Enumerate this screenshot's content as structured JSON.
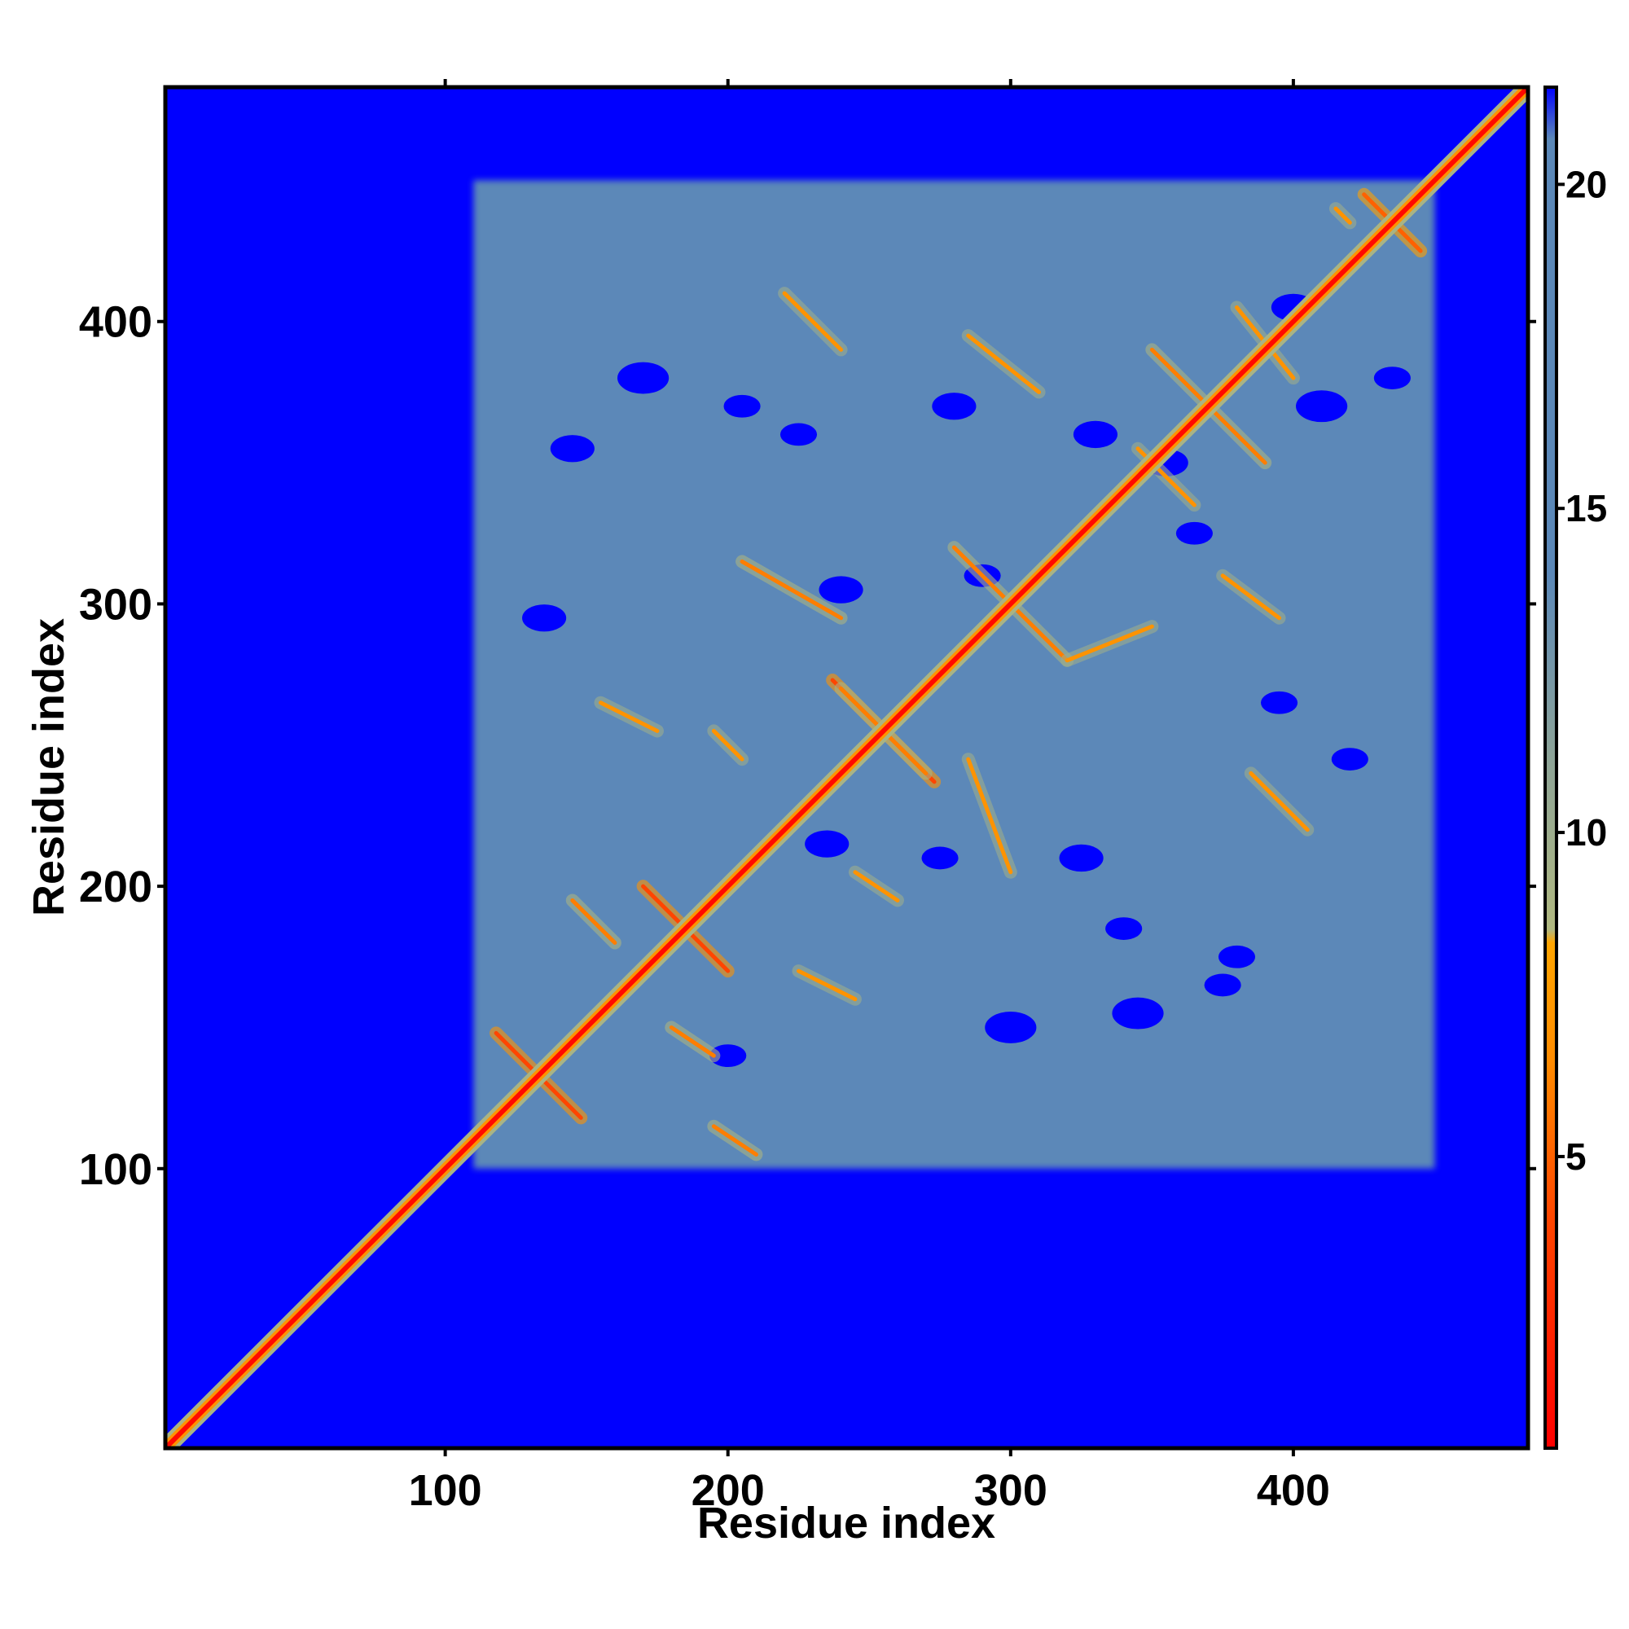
{
  "chart_data": {
    "type": "heatmap",
    "description_type": "contact / distance map",
    "title": "",
    "xlabel": "Residue index",
    "ylabel": "Residue index",
    "x_range": [
      1,
      483
    ],
    "y_range": [
      1,
      483
    ],
    "x_ticks": [
      100,
      200,
      300,
      400
    ],
    "y_ticks": [
      100,
      200,
      300,
      400
    ],
    "x_tick_labels": [
      "100",
      "200",
      "300",
      "400"
    ],
    "y_tick_labels": [
      "100",
      "200",
      "300",
      "400"
    ],
    "colorbar": {
      "range": [
        0.5,
        21.5
      ],
      "ticks": [
        5,
        10,
        15,
        20
      ],
      "tick_labels": [
        "5",
        "10",
        "15",
        "20"
      ],
      "stops": [
        {
          "value": 0.5,
          "color": "#ff0000"
        },
        {
          "value": 4,
          "color": "#ff4500"
        },
        {
          "value": 6.5,
          "color": "#ff8c00"
        },
        {
          "value": 8.3,
          "color": "#ffa500"
        },
        {
          "value": 8.5,
          "color": "#b0b880"
        },
        {
          "value": 11,
          "color": "#8fa596"
        },
        {
          "value": 14,
          "color": "#5b88b8"
        },
        {
          "value": 20.7,
          "color": "#5b88b8"
        },
        {
          "value": 21.5,
          "color": "#0000ff"
        }
      ]
    },
    "background_color": "#0000ff",
    "core_region": {
      "x": [
        110,
        450
      ],
      "y": [
        100,
        450
      ],
      "value": 15
    },
    "diagonal": {
      "from": 1,
      "to": 483,
      "value": 1
    },
    "contact_features": [
      {
        "kind": "antidiagonal",
        "center": [
          133,
          133
        ],
        "halflength": 15,
        "value": 4
      },
      {
        "kind": "antidiagonal",
        "center": [
          185,
          185
        ],
        "halflength": 15,
        "value": 4
      },
      {
        "kind": "antidiagonal",
        "center": [
          255,
          255
        ],
        "halflength": 18,
        "value": 4
      },
      {
        "kind": "antidiagonal",
        "center": [
          300,
          300
        ],
        "halflength": 20,
        "value": 6
      },
      {
        "kind": "antidiagonal",
        "center": [
          370,
          370
        ],
        "halflength": 20,
        "value": 6
      },
      {
        "kind": "antidiagonal",
        "center": [
          435,
          435
        ],
        "halflength": 10,
        "value": 5
      },
      {
        "kind": "segment",
        "from": [
          205,
          315
        ],
        "to": [
          240,
          295
        ],
        "value": 6
      },
      {
        "kind": "segment",
        "from": [
          240,
          270
        ],
        "to": [
          270,
          240
        ],
        "value": 6
      },
      {
        "kind": "segment",
        "from": [
          285,
          245
        ],
        "to": [
          300,
          205
        ],
        "value": 7
      },
      {
        "kind": "segment",
        "from": [
          375,
          310
        ],
        "to": [
          395,
          295
        ],
        "value": 7
      },
      {
        "kind": "segment",
        "from": [
          320,
          280
        ],
        "to": [
          350,
          292
        ],
        "value": 7
      },
      {
        "kind": "segment",
        "from": [
          385,
          240
        ],
        "to": [
          405,
          220
        ],
        "value": 7
      },
      {
        "kind": "segment",
        "from": [
          145,
          195
        ],
        "to": [
          160,
          180
        ],
        "value": 6
      },
      {
        "kind": "segment",
        "from": [
          180,
          150
        ],
        "to": [
          195,
          140
        ],
        "value": 6
      },
      {
        "kind": "segment",
        "from": [
          225,
          170
        ],
        "to": [
          245,
          160
        ],
        "value": 7
      },
      {
        "kind": "segment",
        "from": [
          245,
          205
        ],
        "to": [
          260,
          195
        ],
        "value": 7
      },
      {
        "kind": "segment",
        "from": [
          155,
          265
        ],
        "to": [
          175,
          255
        ],
        "value": 7
      },
      {
        "kind": "segment",
        "from": [
          195,
          255
        ],
        "to": [
          205,
          245
        ],
        "value": 7
      },
      {
        "kind": "segment",
        "from": [
          220,
          410
        ],
        "to": [
          240,
          390
        ],
        "value": 7
      },
      {
        "kind": "segment",
        "from": [
          285,
          395
        ],
        "to": [
          310,
          375
        ],
        "value": 7
      },
      {
        "kind": "segment",
        "from": [
          380,
          405
        ],
        "to": [
          400,
          380
        ],
        "value": 7
      },
      {
        "kind": "segment",
        "from": [
          415,
          440
        ],
        "to": [
          420,
          435
        ],
        "value": 7
      },
      {
        "kind": "segment",
        "from": [
          345,
          355
        ],
        "to": [
          365,
          335
        ],
        "value": 7
      },
      {
        "kind": "segment",
        "from": [
          195,
          115
        ],
        "to": [
          210,
          105
        ],
        "value": 6
      }
    ],
    "void_patches": [
      {
        "center": [
          145,
          355
        ],
        "radius": 6
      },
      {
        "center": [
          170,
          380
        ],
        "radius": 7
      },
      {
        "center": [
          205,
          370
        ],
        "radius": 5
      },
      {
        "center": [
          225,
          360
        ],
        "radius": 5
      },
      {
        "center": [
          280,
          370
        ],
        "radius": 6
      },
      {
        "center": [
          330,
          360
        ],
        "radius": 6
      },
      {
        "center": [
          355,
          350
        ],
        "radius": 6
      },
      {
        "center": [
          400,
          405
        ],
        "radius": 6
      },
      {
        "center": [
          410,
          370
        ],
        "radius": 7
      },
      {
        "center": [
          365,
          325
        ],
        "radius": 5
      },
      {
        "center": [
          135,
          295
        ],
        "radius": 6
      },
      {
        "center": [
          235,
          215
        ],
        "radius": 6
      },
      {
        "center": [
          275,
          210
        ],
        "radius": 5
      },
      {
        "center": [
          325,
          210
        ],
        "radius": 6
      },
      {
        "center": [
          340,
          185
        ],
        "radius": 5
      },
      {
        "center": [
          345,
          155
        ],
        "radius": 7
      },
      {
        "center": [
          380,
          175
        ],
        "radius": 5
      },
      {
        "center": [
          300,
          150
        ],
        "radius": 7
      },
      {
        "center": [
          200,
          140
        ],
        "radius": 5
      },
      {
        "center": [
          420,
          245
        ],
        "radius": 5
      },
      {
        "center": [
          435,
          380
        ],
        "radius": 5
      },
      {
        "center": [
          240,
          305
        ],
        "radius": 6
      },
      {
        "center": [
          290,
          310
        ],
        "radius": 5
      },
      {
        "center": [
          395,
          265
        ],
        "radius": 5
      },
      {
        "center": [
          375,
          165
        ],
        "radius": 5
      }
    ]
  }
}
